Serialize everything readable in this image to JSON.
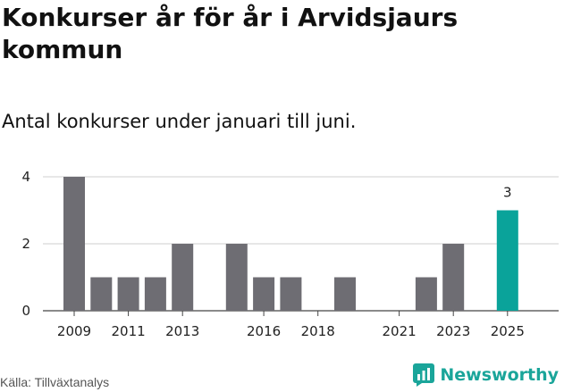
{
  "header": {
    "title": "Konkurser år för år i Arvidsjaurs kommun",
    "subtitle": "Antal konkurser under januari till juni."
  },
  "footer": {
    "source": "Källa: Tillväxtanalys",
    "brand": "Newsworthy"
  },
  "colors": {
    "bar": "#6e6d73",
    "highlight": "#0aa39a",
    "brand": "#1aa59a"
  },
  "chart_data": {
    "type": "bar",
    "categories": [
      "2009",
      "2010",
      "2011",
      "2012",
      "2013",
      "2014",
      "2015",
      "2016",
      "2017",
      "2018",
      "2019",
      "2020",
      "2021",
      "2022",
      "2023",
      "2024",
      "2025"
    ],
    "values": [
      4,
      1,
      1,
      1,
      2,
      0,
      2,
      1,
      1,
      0,
      1,
      0,
      0,
      1,
      2,
      0,
      3
    ],
    "highlight_category": "2025",
    "data_labels": [
      {
        "category": "2025",
        "text": "3"
      }
    ],
    "x_tick_labels": [
      "2009",
      "2011",
      "2013",
      "2016",
      "2018",
      "2021",
      "2023",
      "2025"
    ],
    "y_ticks": [
      0,
      2,
      4
    ],
    "ylim": [
      0,
      4
    ],
    "grid": true
  }
}
